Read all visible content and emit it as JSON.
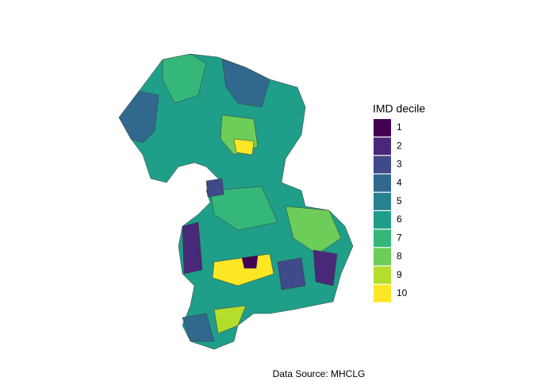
{
  "legend": {
    "title": "IMD decile",
    "items": [
      {
        "label": "1",
        "color": "#440154"
      },
      {
        "label": "2",
        "color": "#482878"
      },
      {
        "label": "3",
        "color": "#3E4A89"
      },
      {
        "label": "4",
        "color": "#31688E"
      },
      {
        "label": "5",
        "color": "#26828E"
      },
      {
        "label": "6",
        "color": "#1F9E89"
      },
      {
        "label": "7",
        "color": "#35B779"
      },
      {
        "label": "8",
        "color": "#6DCD59"
      },
      {
        "label": "9",
        "color": "#B4DE2C"
      },
      {
        "label": "10",
        "color": "#FDE725"
      }
    ]
  },
  "caption": "Data Source: MHCLG"
}
